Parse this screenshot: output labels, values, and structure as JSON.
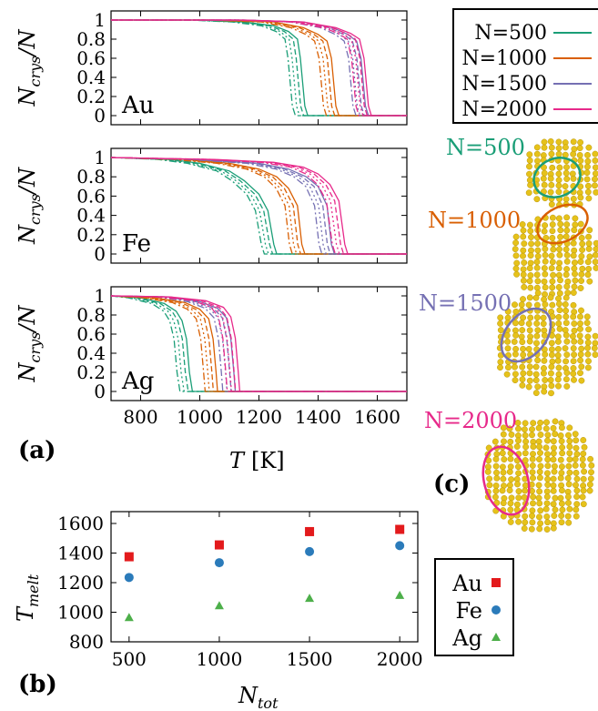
{
  "colors": {
    "N500": "#1a9e77",
    "N1000": "#d95f02",
    "N1500": "#7570b3",
    "N2000": "#e7298a",
    "Au": "#e31a1c",
    "Fe": "#2b7bba",
    "Ag": "#4daf4a",
    "particle": "#e6c21a"
  },
  "chart_data": [
    {
      "type": "line",
      "panel": "a-top",
      "element": "Au",
      "ylabel": "N_crys/N",
      "ylim": [
        0,
        1
      ],
      "xlim": [
        700,
        1700
      ],
      "yticks": [
        "0",
        "0.2",
        "0.4",
        "0.6",
        "0.8",
        "1"
      ],
      "series": [
        {
          "name": "N=500",
          "x": [
            700,
            1000,
            1150,
            1250,
            1300,
            1330,
            1340,
            1355,
            1365,
            1700
          ],
          "values": [
            1,
            1,
            0.98,
            0.94,
            0.88,
            0.8,
            0.6,
            0.1,
            0,
            0
          ]
        },
        {
          "name": "N=1000",
          "x": [
            700,
            1050,
            1250,
            1350,
            1400,
            1430,
            1445,
            1460,
            1470,
            1700
          ],
          "values": [
            1,
            1,
            0.98,
            0.92,
            0.85,
            0.78,
            0.6,
            0.1,
            0,
            0
          ]
        },
        {
          "name": "N=1500",
          "x": [
            700,
            1150,
            1350,
            1450,
            1500,
            1530,
            1545,
            1560,
            1570,
            1700
          ],
          "values": [
            1,
            1,
            0.98,
            0.92,
            0.85,
            0.78,
            0.6,
            0.1,
            0,
            0
          ]
        },
        {
          "name": "N=2000",
          "x": [
            700,
            1150,
            1350,
            1460,
            1510,
            1540,
            1555,
            1570,
            1580,
            1700
          ],
          "values": [
            1,
            1,
            0.98,
            0.92,
            0.86,
            0.8,
            0.6,
            0.1,
            0,
            0
          ]
        }
      ]
    },
    {
      "type": "line",
      "panel": "a-middle",
      "element": "Fe",
      "ylabel": "N_crys/N",
      "ylim": [
        0,
        1
      ],
      "xlim": [
        700,
        1700
      ],
      "yticks": [
        "0",
        "0.2",
        "0.4",
        "0.6",
        "0.8",
        "1"
      ],
      "series": [
        {
          "name": "N=500",
          "x": [
            700,
            900,
            1000,
            1100,
            1150,
            1200,
            1230,
            1250,
            1260,
            1700
          ],
          "values": [
            1,
            0.98,
            0.94,
            0.86,
            0.76,
            0.62,
            0.45,
            0.1,
            0,
            0
          ]
        },
        {
          "name": "N=1000",
          "x": [
            700,
            950,
            1100,
            1200,
            1260,
            1300,
            1330,
            1345,
            1355,
            1700
          ],
          "values": [
            1,
            0.98,
            0.94,
            0.88,
            0.8,
            0.68,
            0.5,
            0.1,
            0,
            0
          ]
        },
        {
          "name": "N=1500",
          "x": [
            700,
            1000,
            1200,
            1300,
            1360,
            1400,
            1430,
            1445,
            1455,
            1700
          ],
          "values": [
            1,
            0.98,
            0.94,
            0.88,
            0.8,
            0.7,
            0.5,
            0.1,
            0,
            0
          ]
        },
        {
          "name": "N=2000",
          "x": [
            700,
            1050,
            1250,
            1350,
            1400,
            1440,
            1470,
            1490,
            1500,
            1700
          ],
          "values": [
            1,
            0.98,
            0.95,
            0.9,
            0.83,
            0.72,
            0.55,
            0.1,
            0,
            0
          ]
        }
      ]
    },
    {
      "type": "line",
      "panel": "a-bottom",
      "element": "Ag",
      "ylabel": "N_crys/N",
      "ylim": [
        0,
        1
      ],
      "xlim": [
        700,
        1700
      ],
      "yticks": [
        "0",
        "0.2",
        "0.4",
        "0.6",
        "0.8",
        "1"
      ],
      "xticks": [
        "800",
        "1000",
        "1200",
        "1400",
        "1600"
      ],
      "xlabel": "T [K]",
      "series": [
        {
          "name": "N=500",
          "x": [
            700,
            800,
            880,
            920,
            940,
            955,
            965,
            975,
            1700
          ],
          "values": [
            1,
            0.98,
            0.92,
            0.84,
            0.74,
            0.55,
            0.2,
            0,
            0
          ]
        },
        {
          "name": "N=1000",
          "x": [
            700,
            850,
            950,
            1000,
            1030,
            1045,
            1055,
            1060,
            1700
          ],
          "values": [
            1,
            0.98,
            0.93,
            0.86,
            0.76,
            0.55,
            0.2,
            0,
            0
          ]
        },
        {
          "name": "N=1500",
          "x": [
            700,
            900,
            1000,
            1060,
            1090,
            1105,
            1115,
            1120,
            1700
          ],
          "values": [
            1,
            0.99,
            0.94,
            0.87,
            0.77,
            0.55,
            0.2,
            0,
            0
          ]
        },
        {
          "name": "N=2000",
          "x": [
            700,
            900,
            1020,
            1080,
            1105,
            1120,
            1130,
            1135,
            1700
          ],
          "values": [
            1,
            0.99,
            0.95,
            0.88,
            0.78,
            0.56,
            0.2,
            0,
            0
          ]
        }
      ]
    },
    {
      "type": "scatter",
      "panel": "b",
      "xlabel": "N_tot",
      "ylabel": "T_melt",
      "xlim": [
        400,
        2100
      ],
      "ylim": [
        800,
        1680
      ],
      "xticks": [
        "500",
        "1000",
        "1500",
        "2000"
      ],
      "yticks": [
        "800",
        "1000",
        "1200",
        "1400",
        "1600"
      ],
      "series": [
        {
          "name": "Au",
          "marker": "square",
          "x": [
            500,
            1000,
            1500,
            2000
          ],
          "values": [
            1375,
            1455,
            1545,
            1560
          ]
        },
        {
          "name": "Fe",
          "marker": "circle",
          "x": [
            500,
            1000,
            1500,
            2000
          ],
          "values": [
            1235,
            1335,
            1410,
            1450
          ]
        },
        {
          "name": "Ag",
          "marker": "triangle",
          "x": [
            500,
            1000,
            1500,
            2000
          ],
          "values": [
            965,
            1045,
            1095,
            1115
          ]
        }
      ]
    }
  ],
  "text": {
    "panel_a": "(a)",
    "panel_b": "(b)",
    "panel_c": "(c)",
    "label_au": "Au",
    "label_fe": "Fe",
    "label_ag": "Ag",
    "ylabel_a_main": "N",
    "ylabel_a_sub": "crys",
    "ylabel_a_tail": "/N",
    "xlabel_a_T": "T",
    "xlabel_a_unit": "[K]",
    "xlabel_b_main": "N",
    "xlabel_b_sub": "tot",
    "ylabel_b_main": "T",
    "ylabel_b_sub": "melt",
    "legend_top": [
      "N=500",
      "N=1000",
      "N=1500",
      "N=2000"
    ],
    "legend_bottom": [
      "Au",
      "Fe",
      "Ag"
    ],
    "cluster_labels": [
      "N=500",
      "N=1000",
      "N=1500",
      "N=2000"
    ]
  }
}
